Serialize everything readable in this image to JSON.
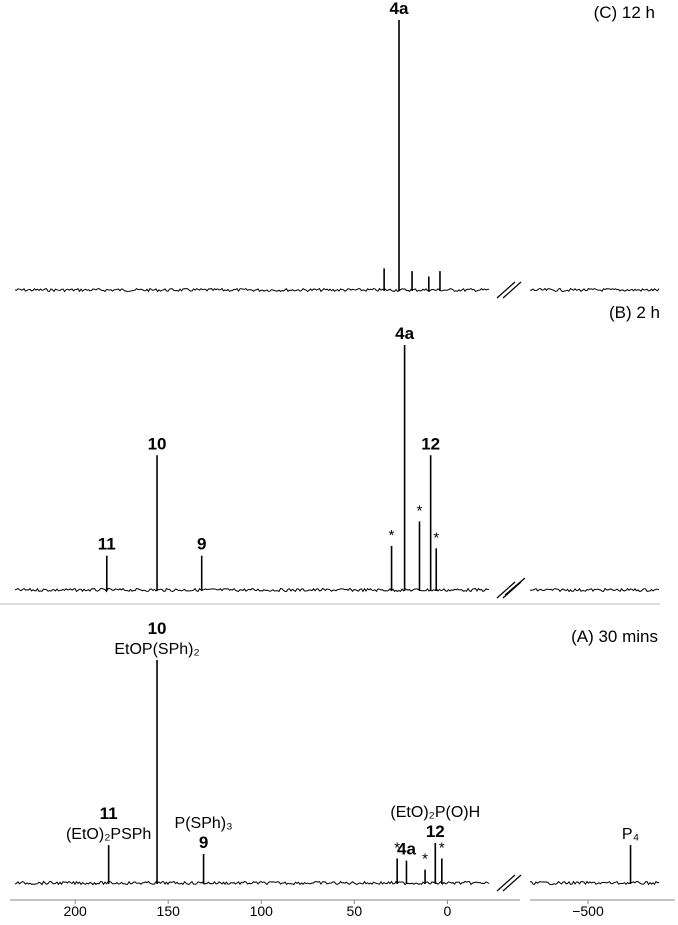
{
  "chart_data": [
    {
      "type": "spectrum",
      "label": "(C) 12 h",
      "x": [
        34,
        26,
        19,
        10,
        4
      ],
      "values": [
        8,
        100,
        7,
        5,
        7
      ],
      "peak_labels": [
        null,
        [
          "4a"
        ],
        null,
        null,
        null
      ]
    },
    {
      "type": "spectrum",
      "label": "(B) 2 h",
      "x": [
        183,
        156,
        132,
        30,
        23,
        15,
        9,
        6
      ],
      "values": [
        14,
        55,
        14,
        18,
        100,
        28,
        55,
        17
      ],
      "peak_labels": [
        [
          "11"
        ],
        [
          "10"
        ],
        [
          "9"
        ],
        [
          "*"
        ],
        [
          "4a"
        ],
        [
          "*"
        ],
        [
          "12"
        ],
        [
          "*"
        ]
      ]
    },
    {
      "type": "spectrum",
      "label": "(A) 30 mins",
      "x": [
        182,
        156,
        131,
        27,
        22,
        12,
        6.5,
        3,
        -522
      ],
      "values": [
        17,
        100,
        13,
        11,
        10,
        6,
        18,
        11,
        17
      ],
      "peak_labels": [
        [
          "11",
          "(EtO)₂PSPh"
        ],
        [
          "10",
          "EtOP(SPh)₂"
        ],
        [
          "P(SPh)₃",
          "9"
        ],
        [
          "*"
        ],
        [
          "4a"
        ],
        [
          "*"
        ],
        [
          "(EtO)₂P(O)H",
          "12"
        ],
        [
          "*"
        ],
        [
          "P₄"
        ]
      ],
      "xlim": [
        235,
        -545
      ],
      "xbreak": [
        -39,
        -470
      ],
      "xticks": [
        200,
        150,
        100,
        50,
        0,
        {
          "value": -500,
          "label": "−500"
        }
      ]
    }
  ]
}
